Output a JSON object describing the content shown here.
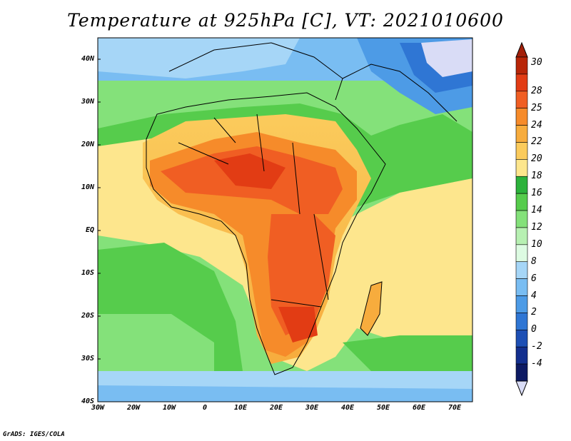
{
  "title": "Temperature at 925hPa [C], VT: 2021010600",
  "credit": "GrADS: IGES/COLA",
  "map": {
    "projection": "lat-lon",
    "lon_range": [
      -30,
      75
    ],
    "lat_range": [
      -40,
      45
    ],
    "lat_ticks": [
      "40N",
      "30N",
      "20N",
      "10N",
      "EQ",
      "10S",
      "20S",
      "30S",
      "40S"
    ],
    "lon_ticks": [
      "30W",
      "20W",
      "10W",
      "0",
      "10E",
      "20E",
      "30E",
      "40E",
      "50E",
      "60E",
      "70E"
    ],
    "field": "Temperature at 925hPa",
    "units": "C"
  },
  "colorbar": {
    "labels": [
      "30",
      "28",
      "25",
      "24",
      "22",
      "20",
      "18",
      "16",
      "14",
      "12",
      "10",
      "8",
      "6",
      "4",
      "2",
      "0",
      "-2",
      "-4"
    ],
    "colors": [
      "#b82608",
      "#e23c14",
      "#f05e23",
      "#f68b2a",
      "#f7ac3d",
      "#fbcb5c",
      "#fde68d",
      "#2cb23b",
      "#56cc4c",
      "#84e17a",
      "#b7f0b2",
      "#ddfbe2",
      "#a6d6f7",
      "#79bdf2",
      "#4d9be6",
      "#2f76d4",
      "#1d4fb4",
      "#132f8e",
      "#0d1a63"
    ],
    "max_arrow_color": "#a3200a",
    "min_arrow_color": "#d9dcf6"
  }
}
